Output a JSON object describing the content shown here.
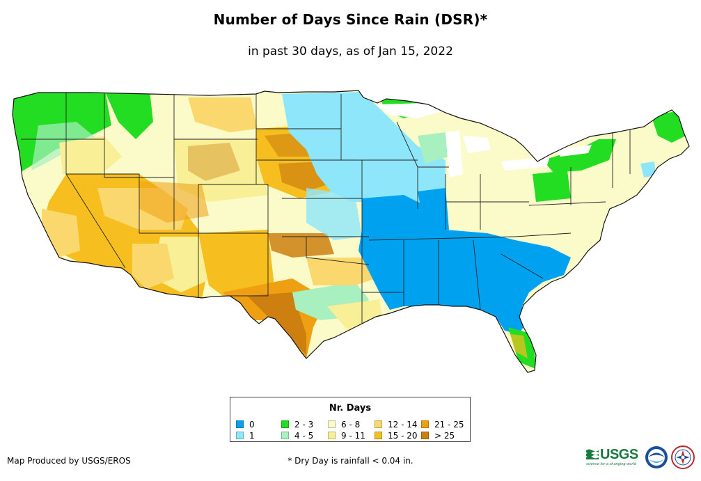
{
  "header": {
    "title": "Number of Days Since Rain (DSR)*",
    "subtitle": "in past 30 days, as of Jan 15, 2022"
  },
  "legend": {
    "title": "Nr. Days",
    "items": [
      {
        "label": "0",
        "color": "#00a2ef"
      },
      {
        "label": "1",
        "color": "#8ee6fb"
      },
      {
        "label": "2 - 3",
        "color": "#22dd22"
      },
      {
        "label": "4 - 5",
        "color": "#a8f0c0"
      },
      {
        "label": "6 - 8",
        "color": "#fbfbc9"
      },
      {
        "label": "9 - 11",
        "color": "#f9ef96"
      },
      {
        "label": "12 - 14",
        "color": "#fbd86e"
      },
      {
        "label": "15 - 20",
        "color": "#f6be1e"
      },
      {
        "label": "21 - 25",
        "color": "#eea012"
      },
      {
        "label": "> 25",
        "color": "#cd7f10"
      }
    ]
  },
  "footer": {
    "credit": "Map Produced by USGS/EROS",
    "footnote": "* Dry Day is rainfall < 0.04 in."
  },
  "logos": {
    "usgs": "USGS",
    "usgs_tagline": "science for a changing world",
    "noaa": "NOAA",
    "nws": "National Weather Service"
  }
}
